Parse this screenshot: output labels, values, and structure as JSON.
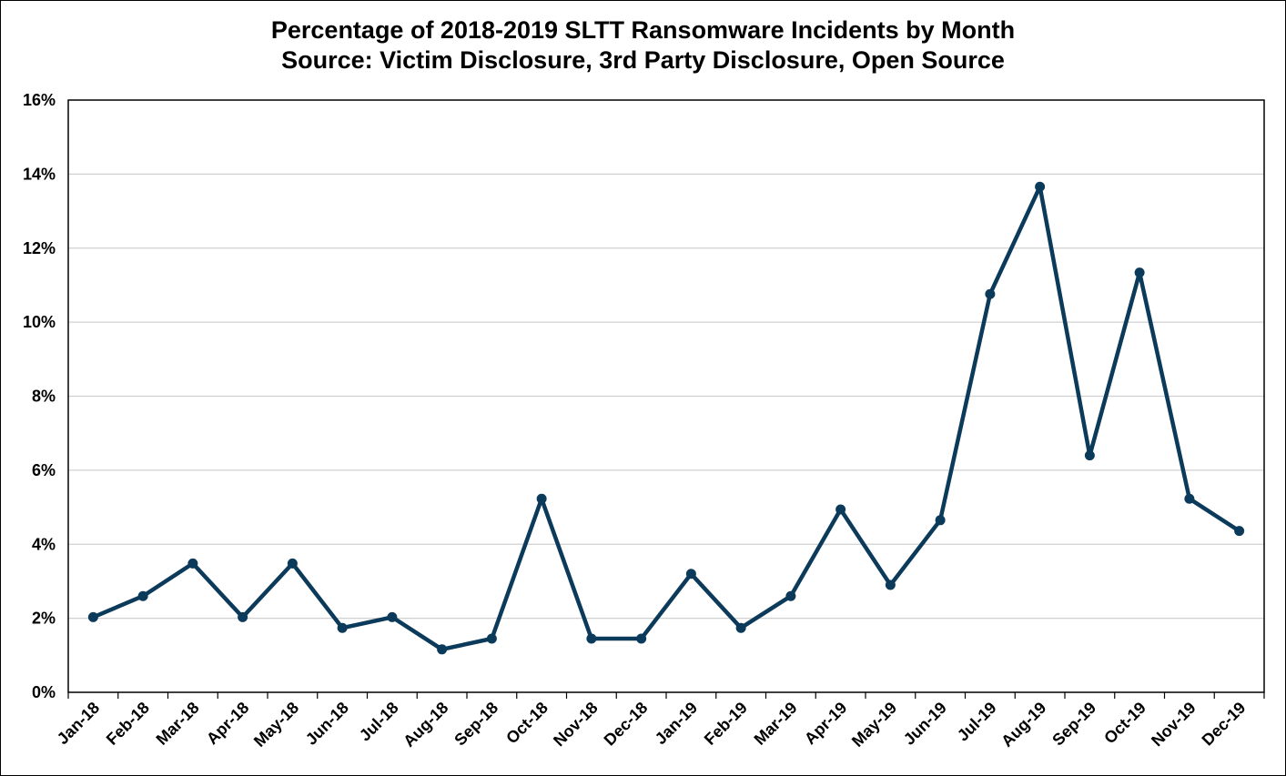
{
  "chart_data": {
    "type": "line",
    "title": "Percentage of 2018-2019 SLTT Ransomware Incidents by Month",
    "subtitle": "Source: Victim Disclosure, 3rd Party Disclosure, Open Source",
    "xlabel": "",
    "ylabel": "",
    "ylim": [
      0,
      16
    ],
    "yticks": [
      0,
      2,
      4,
      6,
      8,
      10,
      12,
      14,
      16
    ],
    "ytick_suffix": "%",
    "grid": true,
    "legend": "none",
    "line_color": "#0B3A5A",
    "categories": [
      "Jan-18",
      "Feb-18",
      "Mar-18",
      "Apr-18",
      "May-18",
      "Jun-18",
      "Jul-18",
      "Aug-18",
      "Sep-18",
      "Oct-18",
      "Nov-18",
      "Dec-18",
      "Jan-19",
      "Feb-19",
      "Mar-19",
      "Apr-19",
      "May-19",
      "Jun-19",
      "Jul-19",
      "Aug-19",
      "Sep-19",
      "Oct-19",
      "Nov-19",
      "Dec-19"
    ],
    "series": [
      {
        "values": [
          2.03,
          2.6,
          3.48,
          2.03,
          3.48,
          1.74,
          2.03,
          1.16,
          1.45,
          5.23,
          1.45,
          1.45,
          3.2,
          1.74,
          2.6,
          4.94,
          2.9,
          4.65,
          10.76,
          13.66,
          6.4,
          11.34,
          5.23,
          4.36
        ]
      }
    ]
  }
}
